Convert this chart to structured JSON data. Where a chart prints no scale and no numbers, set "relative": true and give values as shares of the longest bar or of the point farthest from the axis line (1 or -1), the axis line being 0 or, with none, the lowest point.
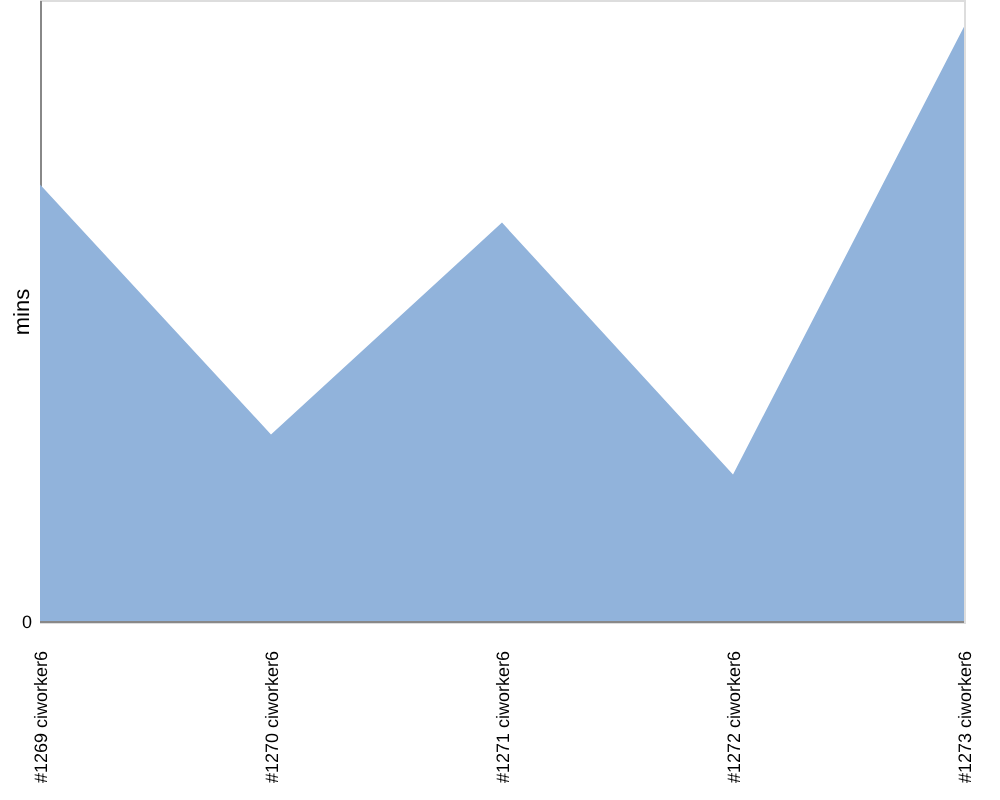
{
  "chart_data": {
    "type": "area",
    "ylabel": "mins",
    "relative": true,
    "annotations": [
      "0"
    ],
    "categories": [
      "#1269 ciworker6",
      "#1270 ciworker6",
      "#1271 ciworker6",
      "#1272 ciworker6",
      "#1273 ciworker6"
    ],
    "series": [
      {
        "color": "#91b3db",
        "values": [
          0.735,
          0.315,
          0.671,
          0.248,
          1
        ]
      }
    ],
    "grid": false,
    "legend": false
  }
}
